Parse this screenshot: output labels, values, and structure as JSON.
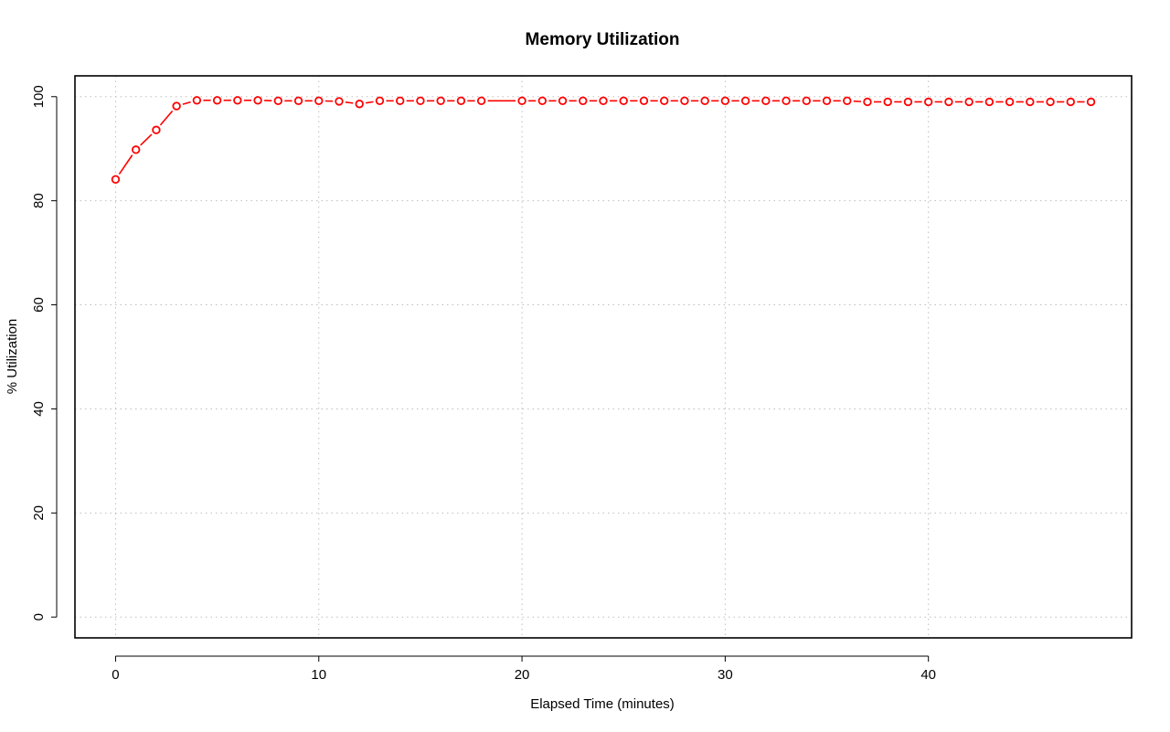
{
  "chart_data": {
    "type": "line",
    "title": "Memory Utilization",
    "xlabel": "Elapsed Time (minutes)",
    "ylabel": "% Utilization",
    "xlim": [
      -2,
      50
    ],
    "ylim": [
      -4,
      104
    ],
    "xticks": [
      0,
      10,
      20,
      30,
      40
    ],
    "yticks": [
      0,
      20,
      40,
      60,
      80,
      100
    ],
    "grid": true,
    "line_color": "#ff0000",
    "grid_color": "#bebebe",
    "series": [
      {
        "x": [
          0,
          1,
          2,
          3,
          4,
          5,
          6,
          7,
          8,
          9,
          10,
          11,
          12,
          13,
          14,
          15,
          16,
          17,
          18,
          19,
          20,
          21,
          22,
          23,
          24,
          25,
          26,
          27,
          28,
          29,
          30,
          31,
          32,
          33,
          34,
          35,
          36,
          37,
          38,
          39,
          40,
          41,
          42,
          43,
          44,
          45,
          46,
          47,
          48
        ],
        "y": [
          84.1,
          89.8,
          93.6,
          98.2,
          99.3,
          99.3,
          99.3,
          99.3,
          99.2,
          99.2,
          99.2,
          99.1,
          98.6,
          99.2,
          99.2,
          99.2,
          99.2,
          99.2,
          99.2,
          null,
          99.2,
          99.2,
          99.2,
          99.2,
          99.2,
          99.2,
          99.2,
          99.2,
          99.2,
          99.2,
          99.2,
          99.2,
          99.2,
          99.2,
          99.2,
          99.2,
          99.2,
          99.0,
          99.0,
          99.0,
          99.0,
          99.0,
          99.0,
          99.0,
          99.0,
          99.0,
          99.0,
          99.0,
          99.0
        ]
      }
    ]
  }
}
